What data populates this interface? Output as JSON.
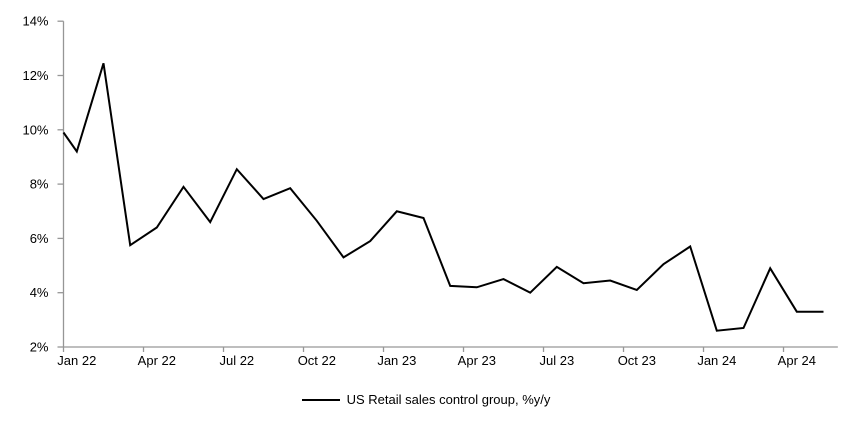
{
  "chart_data": {
    "type": "line",
    "title": "",
    "legend": "US Retail sales control group, %y/y",
    "line_color": "#000000",
    "axis_color": "#969696",
    "grid": false,
    "legend_position": "bottom",
    "ylim": [
      2,
      14
    ],
    "ylabel": "",
    "xlabel": "",
    "yticks": [
      {
        "value": 2,
        "label": "2%"
      },
      {
        "value": 4,
        "label": "4%"
      },
      {
        "value": 6,
        "label": "6%"
      },
      {
        "value": 8,
        "label": "8%"
      },
      {
        "value": 10,
        "label": "10%"
      },
      {
        "value": 12,
        "label": "12%"
      },
      {
        "value": 14,
        "label": "14%"
      }
    ],
    "x_tick_labels": [
      {
        "label": "Jan 22",
        "index": 0
      },
      {
        "label": "Apr 22",
        "index": 3
      },
      {
        "label": "Jul 22",
        "index": 6
      },
      {
        "label": "Oct 22",
        "index": 9
      },
      {
        "label": "Jan 23",
        "index": 12
      },
      {
        "label": "Apr 23",
        "index": 15
      },
      {
        "label": "Jul 23",
        "index": 18
      },
      {
        "label": "Oct 23",
        "index": 21
      },
      {
        "label": "Jan 24",
        "index": 24
      },
      {
        "label": "Apr 24",
        "index": 27
      }
    ],
    "x": [
      "Jan 22",
      "Feb 22",
      "Mar 22",
      "Apr 22",
      "May 22",
      "Jun 22",
      "Jul 22",
      "Aug 22",
      "Sep 22",
      "Oct 22",
      "Nov 22",
      "Dec 22",
      "Jan 23",
      "Feb 23",
      "Mar 23",
      "Apr 23",
      "May 23",
      "Jun 23",
      "Jul 23",
      "Aug 23",
      "Sep 23",
      "Oct 23",
      "Nov 23",
      "Dec 23",
      "Jan 24",
      "Feb 24",
      "Mar 24",
      "Apr 24",
      "May 24"
    ],
    "values": [
      9.2,
      12.45,
      5.75,
      6.4,
      7.9,
      6.6,
      8.55,
      7.45,
      7.85,
      6.65,
      5.3,
      5.9,
      7.0,
      6.75,
      4.25,
      4.2,
      4.5,
      4.0,
      4.95,
      4.35,
      4.45,
      4.1,
      5.05,
      5.7,
      2.6,
      2.7,
      4.9,
      3.3,
      3.3
    ],
    "axis_entry_value": 9.9
  }
}
